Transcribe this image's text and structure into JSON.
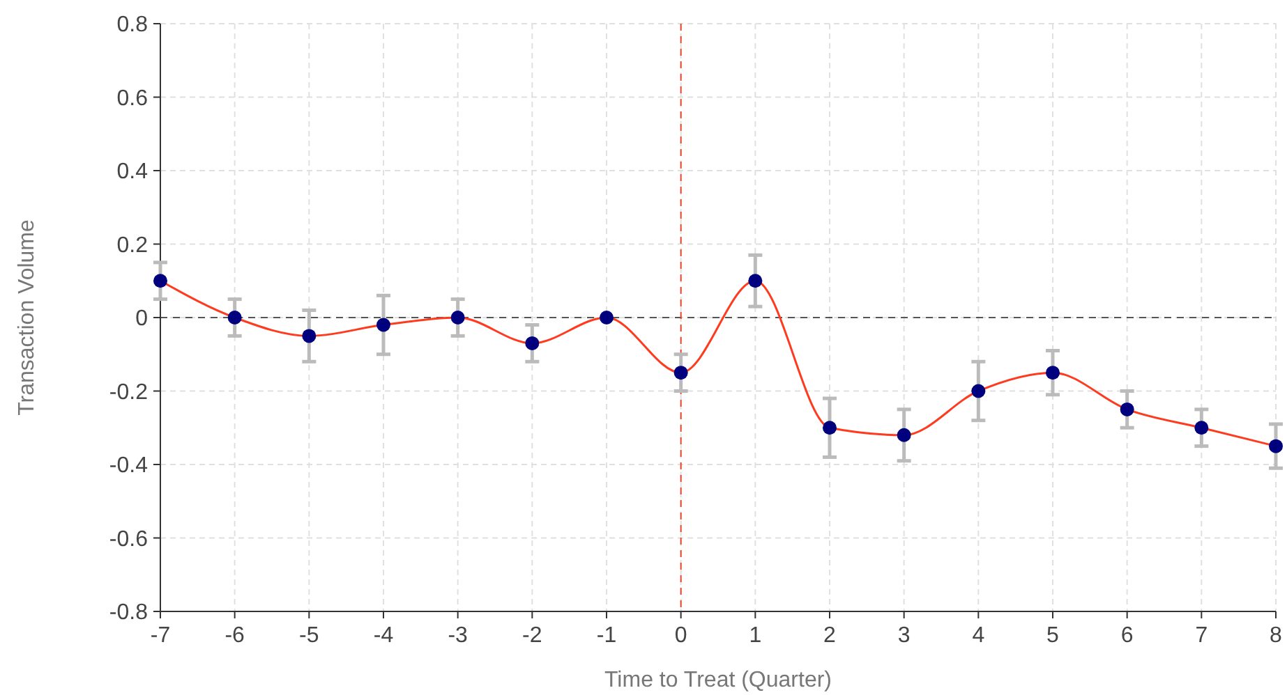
{
  "chart_data": {
    "type": "line",
    "xlabel": "Time to Treat (Quarter)",
    "ylabel": "Transaction Volume",
    "x": [
      -7,
      -6,
      -5,
      -4,
      -3,
      -2,
      -1,
      0,
      1,
      2,
      3,
      4,
      5,
      6,
      7,
      8
    ],
    "series": [
      {
        "color": "#ff3b1f",
        "values": [
          0.1,
          0,
          -0.05,
          -0.02,
          0,
          -0.07,
          0,
          -0.15,
          0.1,
          -0.3,
          -0.32,
          -0.2,
          -0.15,
          -0.25,
          -0.3,
          -0.35
        ],
        "errors": [
          [
            0.05,
            0.15
          ],
          [
            -0.05,
            0.05
          ],
          [
            -0.12,
            0.02
          ],
          [
            -0.1,
            0.06
          ],
          [
            -0.05,
            0.05
          ],
          [
            -0.12,
            -0.02
          ],
          null,
          [
            -0.2,
            -0.1
          ],
          [
            0.03,
            0.17
          ],
          [
            -0.38,
            -0.22
          ],
          [
            -0.39,
            -0.25
          ],
          [
            -0.28,
            -0.12
          ],
          [
            -0.21,
            -0.09
          ],
          [
            -0.3,
            -0.2
          ],
          [
            -0.35,
            -0.25
          ],
          [
            -0.41,
            -0.29
          ]
        ]
      }
    ],
    "xlim": [
      -7,
      8
    ],
    "xticks": [
      -7,
      -6,
      -5,
      -4,
      -3,
      -2,
      -1,
      0,
      1,
      2,
      3,
      4,
      5,
      6,
      7,
      8
    ],
    "ylim": [
      -0.8,
      0.8
    ],
    "yticks": [
      {
        "value": -0.8,
        "label": "-0.8"
      },
      {
        "value": -0.6,
        "label": "-0.6"
      },
      {
        "value": -0.4,
        "label": "-0.4"
      },
      {
        "value": -0.2,
        "label": "-0.2"
      },
      0,
      {
        "value": 0.2,
        "label": "0.2"
      },
      {
        "value": 0.4,
        "label": "0.4"
      },
      {
        "value": 0.6,
        "label": "0.6"
      },
      {
        "value": 0.8,
        "label": "0.8"
      }
    ],
    "grid": true,
    "marker": "circle",
    "line_style": "solid",
    "ref_lines": [
      {
        "axis": "y",
        "value": 0,
        "color": "#555555",
        "line_style": "dashed"
      },
      {
        "axis": "x",
        "value": 0,
        "color": "#e8452c",
        "line_style": "dashed"
      }
    ]
  }
}
